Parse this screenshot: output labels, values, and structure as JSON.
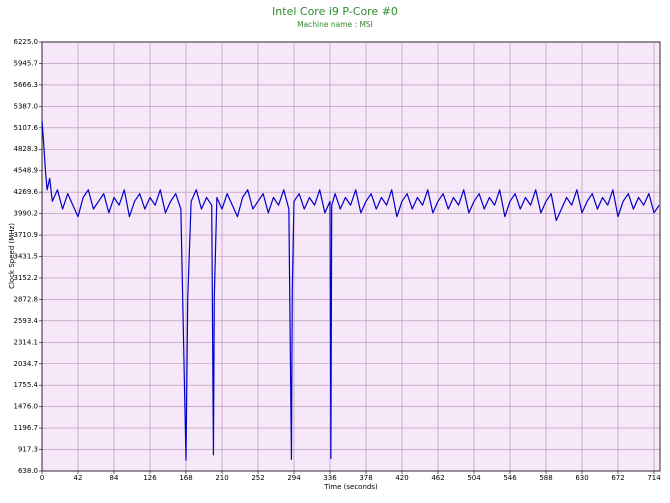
{
  "chart_data": {
    "type": "line",
    "title": "Intel Core i9 P-Core #0",
    "subtitle": "Machine name : MSI",
    "x_label": "Time (seconds)",
    "y_label": "Clock Speed (MHz)",
    "xlim": [
      0,
      721
    ],
    "ylim": [
      638,
      6225
    ],
    "xticks": [
      0,
      42,
      84,
      126,
      168,
      210,
      252,
      294,
      336,
      378,
      420,
      462,
      504,
      546,
      588,
      630,
      672,
      714
    ],
    "yticks": [
      {
        "value": 638,
        "label": "638.0"
      },
      917.3,
      1196.7,
      {
        "value": 1476,
        "label": "1476.0"
      },
      1755.4,
      2034.7,
      2314.1,
      2593.4,
      2872.8,
      3152.2,
      3431.5,
      3710.9,
      3990.2,
      4269.6,
      4548.9,
      4828.3,
      5107.6,
      {
        "value": 5387,
        "label": "5387.0"
      },
      5666.3,
      5945.7,
      {
        "value": 6225,
        "label": "6225.0"
      }
    ],
    "grid": true,
    "background": "#f6e8f8",
    "grid_color": "#b48cb4",
    "x": [
      0,
      2,
      4,
      6,
      9,
      12,
      18,
      24,
      30,
      36,
      42,
      48,
      54,
      60,
      66,
      72,
      78,
      84,
      90,
      96,
      102,
      108,
      114,
      120,
      126,
      132,
      138,
      144,
      150,
      156,
      162,
      168,
      170,
      174,
      180,
      186,
      192,
      198,
      200,
      201,
      204,
      210,
      216,
      222,
      228,
      234,
      240,
      246,
      252,
      258,
      264,
      270,
      276,
      282,
      288,
      291,
      292,
      294,
      300,
      306,
      312,
      318,
      324,
      330,
      336,
      337,
      338,
      342,
      348,
      354,
      360,
      366,
      372,
      378,
      384,
      390,
      396,
      402,
      408,
      414,
      420,
      426,
      432,
      438,
      444,
      450,
      456,
      462,
      468,
      474,
      480,
      486,
      492,
      498,
      504,
      510,
      516,
      522,
      528,
      534,
      540,
      546,
      552,
      558,
      564,
      570,
      576,
      582,
      588,
      594,
      600,
      606,
      612,
      618,
      624,
      630,
      636,
      642,
      648,
      654,
      660,
      666,
      672,
      678,
      684,
      690,
      696,
      702,
      708,
      714,
      720
    ],
    "series": [
      {
        "name": "P-Core #0",
        "color": "#0000c8",
        "values": [
          5200,
          4900,
          4550,
          4300,
          4450,
          4150,
          4300,
          4050,
          4250,
          4100,
          3950,
          4200,
          4300,
          4050,
          4150,
          4250,
          4000,
          4200,
          4100,
          4300,
          3950,
          4150,
          4250,
          4050,
          4200,
          4100,
          4300,
          4000,
          4150,
          4250,
          4050,
          780,
          2880,
          4150,
          4300,
          4050,
          4200,
          4100,
          850,
          2900,
          4200,
          4050,
          4250,
          4100,
          3950,
          4200,
          4300,
          4050,
          4150,
          4250,
          4000,
          4200,
          4100,
          4300,
          4050,
          790,
          3000,
          4150,
          4250,
          4050,
          4200,
          4100,
          4300,
          4000,
          4150,
          800,
          4100,
          4250,
          4050,
          4200,
          4100,
          4300,
          4000,
          4150,
          4250,
          4050,
          4200,
          4100,
          4300,
          3950,
          4150,
          4250,
          4050,
          4200,
          4100,
          4300,
          4000,
          4150,
          4250,
          4050,
          4200,
          4100,
          4300,
          4000,
          4150,
          4250,
          4050,
          4200,
          4100,
          4300,
          3950,
          4150,
          4250,
          4050,
          4200,
          4100,
          4300,
          4000,
          4150,
          4250,
          3900,
          4050,
          4200,
          4100,
          4300,
          4000,
          4150,
          4250,
          4050,
          4200,
          4100,
          4300,
          3950,
          4150,
          4250,
          4050,
          4200,
          4100,
          4250,
          4000,
          4100
        ]
      }
    ]
  }
}
